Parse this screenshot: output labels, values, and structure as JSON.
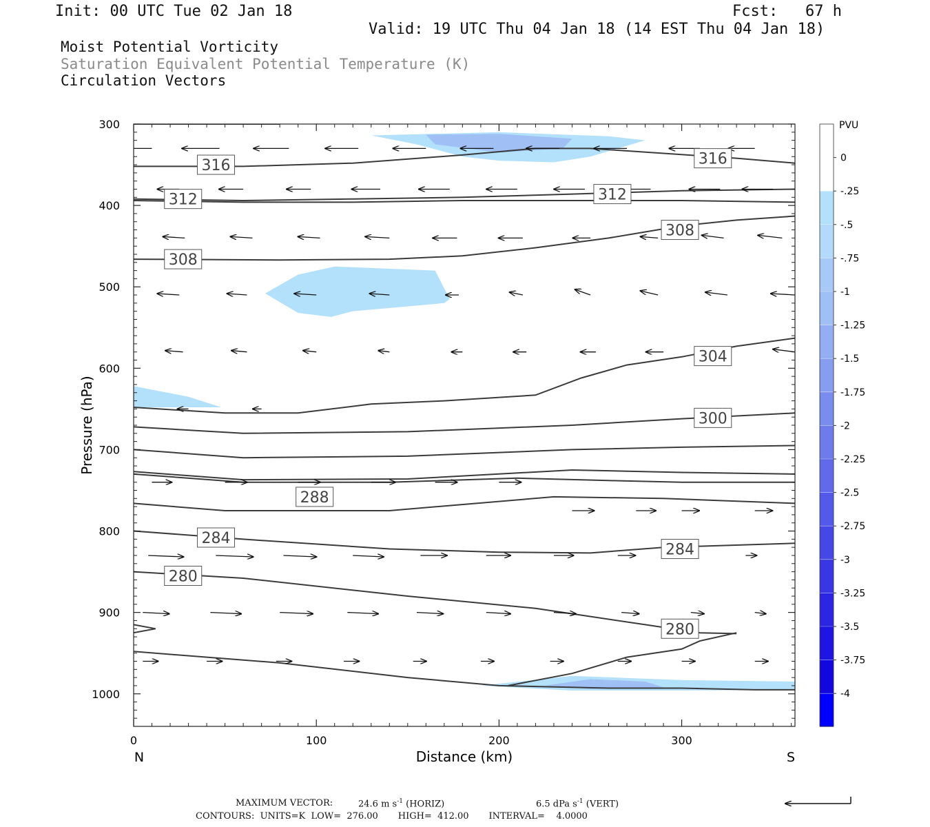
{
  "header": {
    "init": "Init: 00 UTC Tue 02 Jan 18",
    "fcst": "Fcst:   67 h",
    "valid": "Valid: 19 UTC Thu 04 Jan 18 (14 EST Thu 04 Jan 18)"
  },
  "fields": [
    "Moist Potential Vorticity",
    "Saturation Equivalent Potential Temperature (K)",
    "Circulation Vectors"
  ],
  "footer": {
    "max_vector_label": "MAXIMUM VECTOR:",
    "horiz_value": "24.6 m s",
    "horiz_tag": "(HORIZ)",
    "vert_value": "6.5 dPa s",
    "vert_tag": "(VERT)",
    "exp": "-1",
    "contours_line": "CONTOURS:  UNITS=K  LOW=  276.00       HIGH=  412.00       INTERVAL=    4.0000"
  },
  "colors": {
    "contour": "#3a3a3a",
    "pv_light": "#b3e1fb",
    "pv_mid": "#9fbff5",
    "pv_deep": "#0000ff"
  },
  "chart_data": {
    "type": "contour",
    "xlabel": "Distance (km)",
    "ylabel": "Pressure (hPa)",
    "xlim": [
      0,
      362
    ],
    "ylim": [
      1040,
      300
    ],
    "x_ticks": [
      0,
      100,
      200,
      300
    ],
    "y_ticks": [
      300,
      400,
      500,
      600,
      700,
      800,
      900,
      1000
    ],
    "x_end_labels": {
      "left": "N",
      "right": "S"
    },
    "colorbar": {
      "title": "PVU",
      "labels": [
        "0",
        "-.25",
        "-.5",
        "-.75",
        "-1",
        "-1.25",
        "-1.5",
        "-1.75",
        "-2",
        "-2.25",
        "-2.5",
        "-2.75",
        "-3",
        "-3.25",
        "-3.5",
        "-3.75",
        "-4"
      ],
      "colors": [
        "#ffffff",
        "#b3e1fb",
        "#b3dafb",
        "#a8c9f7",
        "#9fbff5",
        "#93aef2",
        "#879df0",
        "#7a8cee",
        "#6d7bec",
        "#606aea",
        "#5359e8",
        "#4648e6",
        "#3937e4",
        "#2c26e2",
        "#1f15e0",
        "#1208de",
        "#0000ff"
      ]
    },
    "contour_labels": [
      {
        "text": "316",
        "x": 36,
        "p": 350
      },
      {
        "text": "316",
        "x": 308,
        "p": 342
      },
      {
        "text": "312",
        "x": 18,
        "p": 392
      },
      {
        "text": "312",
        "x": 253,
        "p": 386
      },
      {
        "text": "308",
        "x": 18,
        "p": 466
      },
      {
        "text": "308",
        "x": 290,
        "p": 430
      },
      {
        "text": "304",
        "x": 308,
        "p": 585
      },
      {
        "text": "300",
        "x": 308,
        "p": 661
      },
      {
        "text": "288",
        "x": 90,
        "p": 758
      },
      {
        "text": "284",
        "x": 36,
        "p": 808
      },
      {
        "text": "284",
        "x": 290,
        "p": 822
      },
      {
        "text": "280",
        "x": 18,
        "p": 855
      },
      {
        "text": "280",
        "x": 290,
        "p": 920
      }
    ],
    "contours": [
      {
        "x": [
          0,
          80
        ],
        "p": [
          300,
          300
        ]
      },
      {
        "x": [
          0,
          60,
          120,
          180,
          220,
          250,
          290,
          330,
          362
        ],
        "p": [
          352,
          352,
          348,
          338,
          330,
          330,
          336,
          342,
          348
        ]
      },
      {
        "x": [
          0,
          60,
          120,
          180,
          240,
          300,
          362
        ],
        "p": [
          392,
          394,
          392,
          390,
          386,
          382,
          380
        ]
      },
      {
        "x": [
          0,
          60,
          120,
          180,
          240,
          300,
          362
        ],
        "p": [
          394,
          396,
          396,
          394,
          394,
          394,
          396
        ]
      },
      {
        "x": [
          0,
          80,
          140,
          180,
          220,
          260,
          300,
          330,
          362
        ],
        "p": [
          466,
          467,
          466,
          462,
          452,
          440,
          425,
          418,
          413
        ]
      },
      {
        "x": [
          0,
          50,
          90,
          130,
          170,
          220,
          245,
          270,
          300,
          330,
          362
        ],
        "p": [
          648,
          655,
          655,
          644,
          640,
          633,
          612,
          596,
          586,
          573,
          563
        ]
      },
      {
        "x": [
          0,
          60,
          150,
          240,
          300,
          362
        ],
        "p": [
          672,
          680,
          678,
          670,
          662,
          655
        ]
      },
      {
        "x": [
          0,
          60,
          150,
          240,
          300,
          362
        ],
        "p": [
          700,
          710,
          708,
          700,
          697,
          695
        ]
      },
      {
        "x": [
          0,
          60,
          150,
          240,
          300,
          362
        ],
        "p": [
          727,
          737,
          736,
          725,
          728,
          730
        ]
      },
      {
        "x": [
          0,
          60,
          140,
          210,
          260,
          300,
          362
        ],
        "p": [
          730,
          740,
          740,
          735,
          738,
          740,
          740
        ]
      },
      {
        "x": [
          0,
          50,
          140,
          230,
          290,
          362
        ],
        "p": [
          766,
          775,
          775,
          758,
          760,
          766
        ]
      },
      {
        "x": [
          0,
          60,
          140,
          200,
          250,
          290,
          362
        ],
        "p": [
          800,
          810,
          822,
          826,
          827,
          820,
          815
        ]
      },
      {
        "x": [
          0,
          60,
          150,
          220,
          280,
          310,
          330
        ],
        "p": [
          850,
          858,
          880,
          895,
          915,
          925,
          926
        ]
      },
      {
        "x": [
          0,
          12,
          0
        ],
        "p": [
          915,
          920,
          925
        ]
      },
      {
        "x": [
          0,
          80,
          150,
          200,
          260,
          300,
          340,
          362
        ],
        "p": [
          948,
          962,
          980,
          990,
          993,
          993,
          995,
          995
        ]
      },
      {
        "x": [
          205,
          240,
          270,
          300,
          310,
          330
        ],
        "p": [
          990,
          975,
          955,
          945,
          935,
          925
        ]
      }
    ],
    "pv_regions": [
      {
        "level": 1,
        "x": [
          130,
          200,
          260,
          280,
          250,
          230,
          200,
          180,
          155
        ],
        "p": [
          314,
          310,
          315,
          320,
          340,
          347,
          345,
          340,
          325
        ]
      },
      {
        "level": 2,
        "x": [
          160,
          200,
          240,
          235,
          200,
          165
        ],
        "p": [
          313,
          312,
          318,
          330,
          335,
          325
        ]
      },
      {
        "level": 1,
        "x": [
          72,
          90,
          110,
          165,
          173,
          170,
          120,
          108,
          90,
          72
        ],
        "p": [
          508,
          485,
          475,
          480,
          515,
          520,
          530,
          537,
          532,
          508
        ]
      },
      {
        "level": 1,
        "x": [
          0,
          30,
          48,
          0
        ],
        "p": [
          622,
          635,
          648,
          648
        ]
      },
      {
        "level": 1,
        "x": [
          190,
          240,
          300,
          362,
          362,
          300,
          240,
          190
        ],
        "p": [
          990,
          978,
          983,
          985,
          995,
          996,
          996,
          990
        ]
      },
      {
        "level": 2,
        "x": [
          225,
          250,
          280,
          290,
          250
        ],
        "p": [
          990,
          982,
          985,
          992,
          994
        ]
      }
    ],
    "vectors": [
      {
        "p": 330,
        "x": [
          10,
          47,
          85,
          123,
          160,
          197,
          233,
          270,
          310,
          340
        ],
        "u": [
          -1,
          -1,
          -1,
          -1,
          -1,
          -1,
          -1,
          -1,
          -1,
          -1
        ],
        "len": [
          34,
          34,
          32,
          30,
          30,
          30,
          30,
          30,
          28,
          24
        ]
      },
      {
        "p": 380,
        "x": [
          25,
          60,
          97,
          135,
          173,
          210,
          247,
          283,
          321,
          350
        ],
        "u": [
          -1,
          -1,
          -1,
          -1,
          -1,
          -1,
          -1,
          -1,
          -1,
          -1
        ],
        "len": [
          20,
          22,
          22,
          26,
          28,
          28,
          28,
          28,
          28,
          28
        ]
      },
      {
        "p": 440,
        "x": [
          28,
          65,
          102,
          140,
          177,
          213,
          250,
          287,
          323,
          355
        ],
        "u": [
          -1,
          -1,
          -1,
          -1,
          -1,
          -1,
          -1,
          -1,
          -1,
          -1
        ],
        "len": [
          20,
          20,
          20,
          22,
          22,
          22,
          16,
          16,
          20,
          22
        ],
        "v": [
          -2,
          -2,
          -2,
          -2,
          0,
          0,
          0,
          -2,
          -4,
          -4
        ]
      },
      {
        "p": 510,
        "x": [
          25,
          62,
          100,
          140,
          178,
          213,
          250,
          287,
          325,
          362
        ],
        "u": [
          -1,
          -1,
          -1,
          -1,
          -1,
          -1,
          -1,
          -1,
          -1,
          -1
        ],
        "len": [
          20,
          18,
          20,
          18,
          12,
          12,
          14,
          16,
          20,
          22
        ],
        "v": [
          -2,
          -2,
          -2,
          -2,
          0,
          -4,
          -8,
          -6,
          -4,
          -2
        ]
      },
      {
        "p": 580,
        "x": [
          27,
          62,
          100,
          140,
          180,
          215,
          253,
          290,
          327,
          362
        ],
        "u": [
          -1,
          -1,
          -1,
          -1,
          -1,
          -1,
          -1,
          -1,
          -1,
          -1
        ],
        "len": [
          16,
          14,
          12,
          10,
          10,
          12,
          14,
          16,
          18,
          20
        ],
        "v": [
          -2,
          -2,
          -2,
          -2,
          0,
          0,
          0,
          0,
          0,
          -4
        ]
      },
      {
        "p": 650,
        "x": [
          30,
          70
        ],
        "u": [
          -1,
          -1
        ],
        "len": [
          10,
          8
        ]
      },
      {
        "p": 740,
        "x": [
          10,
          50,
          90,
          130,
          165,
          200
        ],
        "u": [
          1,
          1,
          1,
          1,
          1,
          1
        ],
        "len": [
          18,
          20,
          20,
          22,
          20,
          20
        ]
      },
      {
        "p": 775,
        "x": [
          240,
          275,
          300,
          340
        ],
        "u": [
          1,
          1,
          1,
          1
        ],
        "len": [
          20,
          18,
          16,
          16
        ]
      },
      {
        "p": 830,
        "x": [
          8,
          45,
          82,
          120,
          157,
          193,
          230,
          265,
          300,
          335
        ],
        "u": [
          1,
          1,
          1,
          1,
          1,
          1,
          1,
          1,
          1,
          1
        ],
        "len": [
          32,
          34,
          30,
          28,
          24,
          22,
          18,
          16,
          12,
          10
        ],
        "v": [
          2,
          2,
          2,
          2,
          0,
          0,
          0,
          0,
          0,
          0
        ]
      },
      {
        "p": 900,
        "x": [
          5,
          42,
          80,
          117,
          155,
          193,
          230,
          267,
          305,
          340
        ],
        "u": [
          1,
          1,
          1,
          1,
          1,
          1,
          1,
          1,
          1,
          1
        ],
        "len": [
          24,
          28,
          30,
          28,
          24,
          22,
          20,
          16,
          12,
          10
        ],
        "v": [
          2,
          2,
          2,
          2,
          2,
          2,
          2,
          2,
          2,
          2
        ]
      },
      {
        "p": 960,
        "x": [
          5,
          40,
          78,
          115,
          153,
          190,
          228,
          265,
          300,
          340
        ],
        "u": [
          1,
          1,
          1,
          1,
          1,
          1,
          1,
          1,
          1,
          1
        ],
        "len": [
          14,
          14,
          14,
          14,
          12,
          12,
          12,
          12,
          12,
          12
        ],
        "v": [
          0,
          0,
          0,
          0,
          0,
          0,
          0,
          0,
          0,
          0
        ]
      }
    ]
  }
}
